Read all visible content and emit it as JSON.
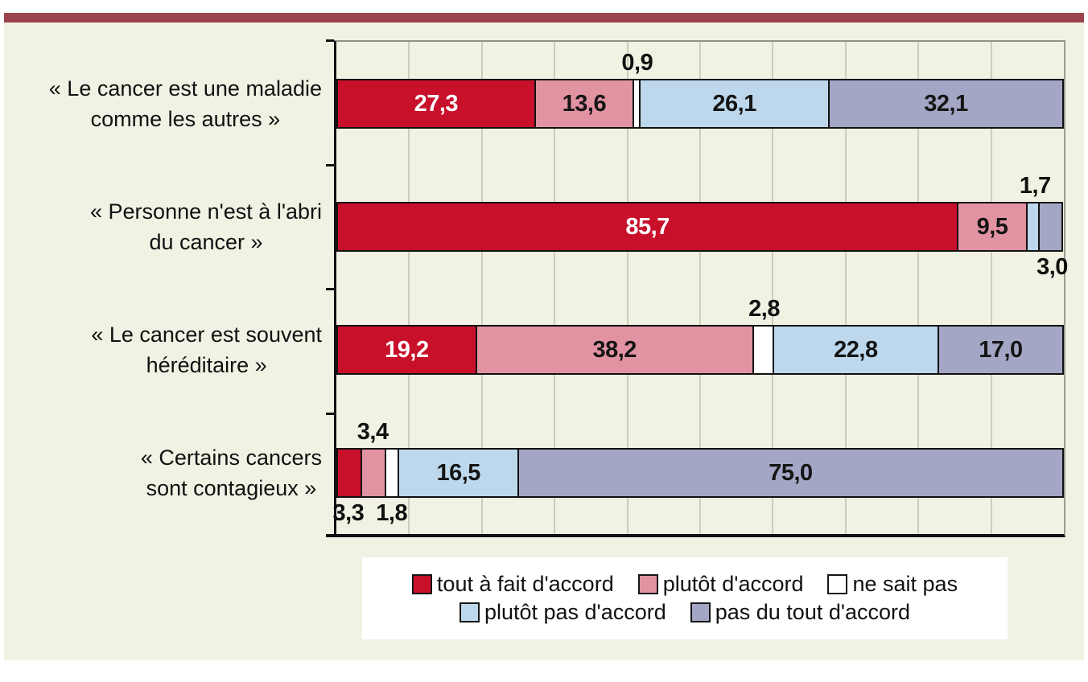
{
  "page": {
    "background": "#ffffff",
    "panel_color": "#f1f2e3",
    "banner_color": "#9c4350",
    "gridline_color": "#cbcdbd",
    "axis_color": "#111111"
  },
  "chart_data": {
    "type": "bar",
    "orientation": "horizontal",
    "stacked": true,
    "xlim": [
      0,
      100
    ],
    "gridline_step": 10,
    "grid": true,
    "legend_position": "bottom",
    "title": "",
    "xlabel": "",
    "ylabel": "",
    "series": [
      {
        "name": "tout à fait d'accord",
        "color": "#c8102b",
        "label_color": "#ffffff"
      },
      {
        "name": "plutôt d'accord",
        "color": "#e293a2",
        "label_color": "#151515"
      },
      {
        "name": "ne sait pas",
        "color": "#ffffff",
        "label_color": "#151515"
      },
      {
        "name": "plutôt pas d'accord",
        "color": "#bdd8ec",
        "label_color": "#151515"
      },
      {
        "name": "pas du tout d'accord",
        "color": "#a3a7c5",
        "label_color": "#151515"
      }
    ],
    "rows": [
      {
        "label_lines": [
          "« Le cancer est une maladie",
          "comme les autres »"
        ],
        "values": [
          27.3,
          13.6,
          0.9,
          26.1,
          32.1
        ],
        "displays": [
          "27,3",
          "13,6",
          "0,9",
          "26,1",
          "32,1"
        ],
        "label_placements": [
          "inside",
          "inside",
          "above",
          "inside",
          "inside"
        ]
      },
      {
        "label_lines": [
          "« Personne n'est à l'abri",
          "du cancer »"
        ],
        "values": [
          85.7,
          9.5,
          0,
          1.7,
          3.0
        ],
        "displays": [
          "85,7",
          "9,5",
          "",
          "1,7",
          "3,0"
        ],
        "label_placements": [
          "inside",
          "inside",
          "none",
          "above",
          "below"
        ]
      },
      {
        "label_lines": [
          "« Le cancer est souvent",
          "héréditaire »"
        ],
        "values": [
          19.2,
          38.2,
          2.8,
          22.8,
          17.0
        ],
        "displays": [
          "19,2",
          "38,2",
          "2,8",
          "22,8",
          "17,0"
        ],
        "label_placements": [
          "inside",
          "inside",
          "above",
          "inside",
          "inside"
        ]
      },
      {
        "label_lines": [
          "« Certains cancers",
          "sont contagieux »"
        ],
        "values": [
          3.3,
          3.4,
          1.8,
          16.5,
          75.0
        ],
        "displays": [
          "3,3",
          "3,4",
          "1,8",
          "16,5",
          "75,0"
        ],
        "label_placements": [
          "below",
          "above",
          "below",
          "inside",
          "inside"
        ]
      }
    ],
    "legend_rows": [
      [
        0,
        1,
        2
      ],
      [
        3,
        4
      ]
    ]
  }
}
